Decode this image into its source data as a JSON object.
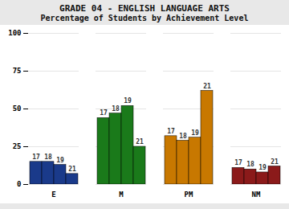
{
  "chart_data": {
    "type": "bar",
    "title": "GRADE 04 - ENGLISH LANGUAGE ARTS",
    "subtitle": "Percentage of Students by Achievement Level",
    "categories": [
      "E",
      "M",
      "PM",
      "NM"
    ],
    "series": [
      {
        "name": "17",
        "values": [
          15,
          44,
          32,
          11
        ]
      },
      {
        "name": "18",
        "values": [
          15,
          47,
          29,
          10
        ]
      },
      {
        "name": "19",
        "values": [
          13,
          52,
          31,
          8
        ]
      },
      {
        "name": "21",
        "values": [
          7,
          25,
          62,
          12
        ]
      }
    ],
    "colors": [
      "#1a3a8a",
      "#1a7a1a",
      "#c87800",
      "#8b1a1a"
    ],
    "ylim": [
      0,
      100
    ],
    "yticks": [
      0,
      25,
      50,
      75,
      100
    ],
    "grid": true
  }
}
